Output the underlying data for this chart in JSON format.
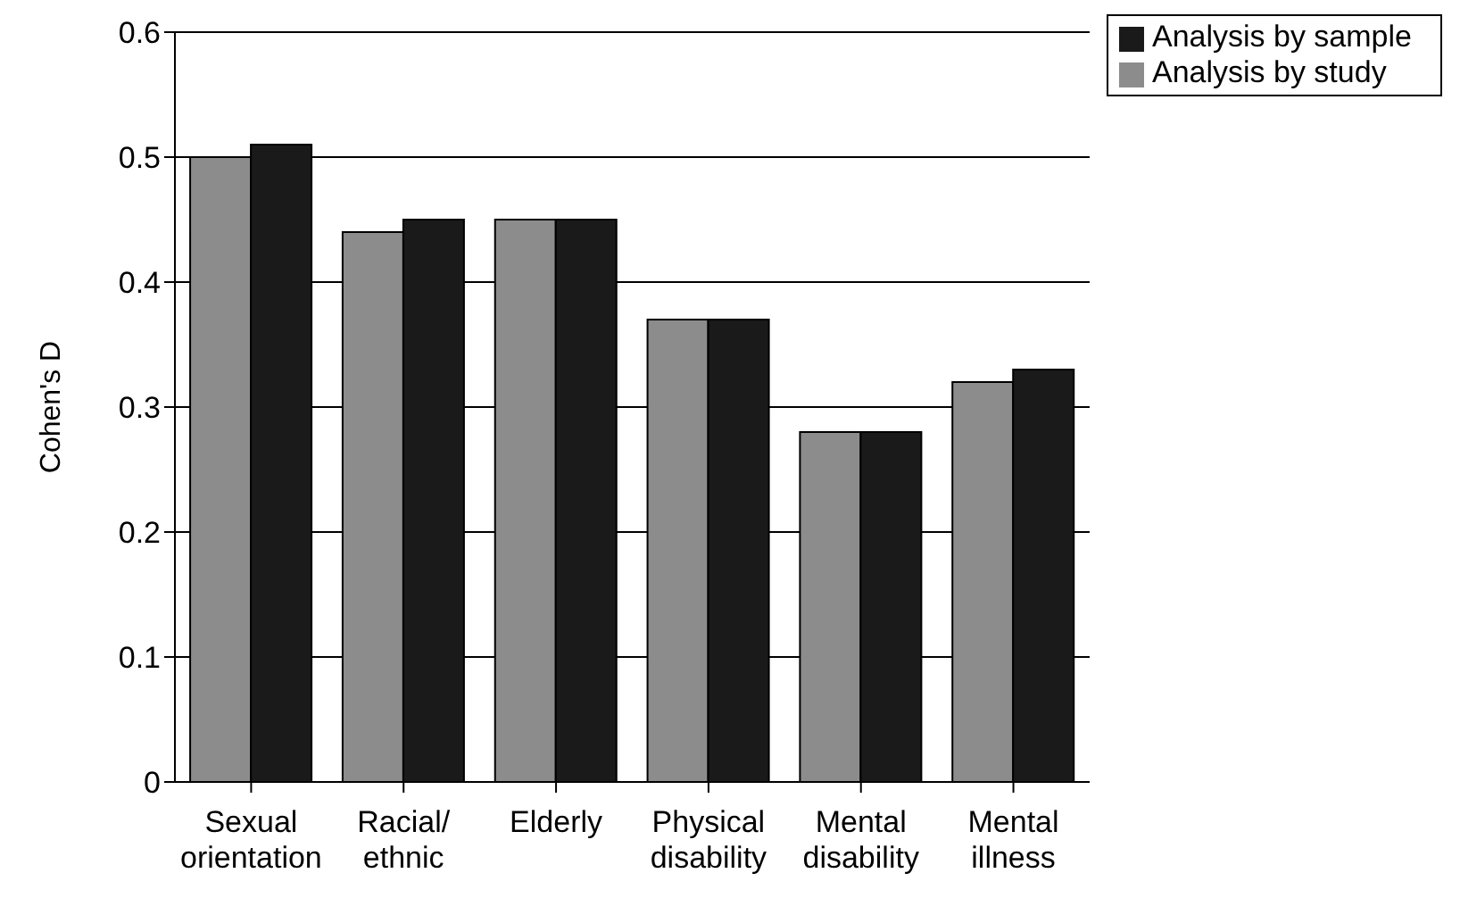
{
  "chart_data": {
    "type": "bar",
    "ylabel": "Cohen's D",
    "categories": [
      "Sexual orientation",
      "Racial/ ethnic",
      "Elderly",
      "Physical disability",
      "Mental disability",
      "Mental illness"
    ],
    "series": [
      {
        "name": "Analysis by study",
        "color": "#8c8c8c",
        "values": [
          0.5,
          0.44,
          0.45,
          0.37,
          0.28,
          0.32
        ]
      },
      {
        "name": "Analysis by sample",
        "color": "#1a1a1a",
        "values": [
          0.51,
          0.45,
          0.45,
          0.37,
          0.28,
          0.33
        ]
      }
    ],
    "ylim": [
      0,
      0.6
    ],
    "yticks": [
      0,
      0.1,
      0.2,
      0.3,
      0.4,
      0.5,
      0.6
    ],
    "grid": "y",
    "legend": "top right"
  }
}
